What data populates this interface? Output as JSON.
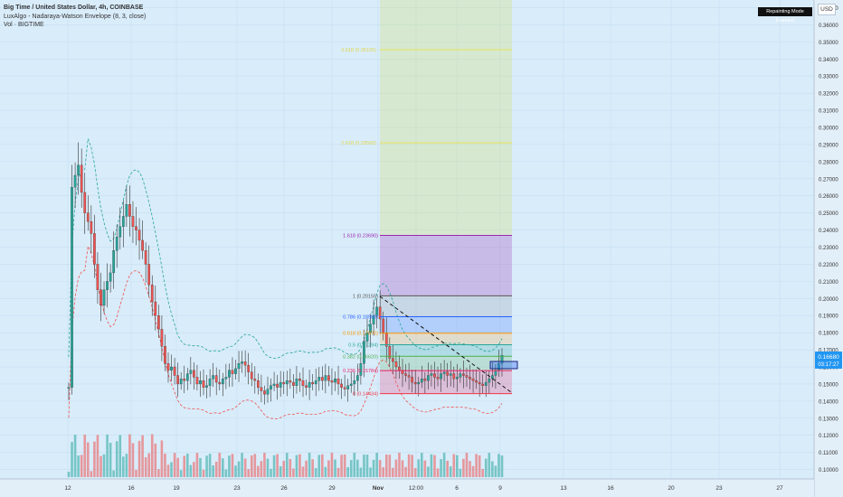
{
  "chart_data": {
    "type": "candlestick",
    "title": "Big Time / United States Dollar, 4h, COINBASE",
    "indicators": [
      "LuxAlgo - Nadaraya-Watson Envelope (8, 3, close)",
      "Vol · BIGTIME"
    ],
    "currency": "USD",
    "banner": "Repainting Mode Enabled",
    "price": "0.16680",
    "countdown": "03:17:27",
    "y_ticks": [
      "0.37000",
      "0.36000",
      "0.35000",
      "0.34000",
      "0.33000",
      "0.32000",
      "0.31000",
      "0.30000",
      "0.29000",
      "0.28000",
      "0.27000",
      "0.26000",
      "0.25000",
      "0.24000",
      "0.23000",
      "0.22000",
      "0.21000",
      "0.20000",
      "0.19000",
      "0.18000",
      "0.17000",
      "0.16000",
      "0.15000",
      "0.14000",
      "0.13000",
      "0.12000",
      "0.11000",
      "0.10000"
    ],
    "y_range": [
      0.0945,
      0.3745
    ],
    "x_ticks": [
      "12",
      "16",
      "19",
      "23",
      "26",
      "29",
      "Nov",
      "12:00",
      "6",
      "9",
      "13",
      "16",
      "20",
      "23",
      "27"
    ],
    "fib_levels": [
      {
        "label": "1.618 (0.23690)",
        "value": 0.2369,
        "color": "#9c27b0"
      },
      {
        "label": "1 (0.20155)",
        "value": 0.20155,
        "color": "#555555"
      },
      {
        "label": "0.786 (0.18930)",
        "value": 0.1893,
        "color": "#2962ff"
      },
      {
        "label": "0.618 (0.17970)",
        "value": 0.1797,
        "color": "#ff9800"
      },
      {
        "label": "0.5 (0.17294)",
        "value": 0.17294,
        "color": "#26a69a"
      },
      {
        "label": "0.382 (0.16620)",
        "value": 0.1662,
        "color": "#4caf50"
      },
      {
        "label": "0.236 (0.15784)",
        "value": 0.15784,
        "color": "#e91e63"
      },
      {
        "label": "0 (0.14434)",
        "value": 0.14434,
        "color": "#f23645"
      }
    ],
    "fib_upper_faint": [
      "3.618 (0.35155)",
      "2.618 (0.29500)"
    ],
    "series_close": [
      0.148,
      0.265,
      0.272,
      0.278,
      0.262,
      0.25,
      0.245,
      0.238,
      0.22,
      0.205,
      0.196,
      0.205,
      0.21,
      0.215,
      0.228,
      0.236,
      0.242,
      0.248,
      0.255,
      0.248,
      0.242,
      0.24,
      0.234,
      0.228,
      0.22,
      0.208,
      0.198,
      0.19,
      0.182,
      0.172,
      0.162,
      0.158,
      0.16,
      0.155,
      0.15,
      0.153,
      0.152,
      0.156,
      0.158,
      0.154,
      0.15,
      0.152,
      0.148,
      0.149,
      0.153,
      0.155,
      0.151,
      0.15,
      0.153,
      0.154,
      0.158,
      0.156,
      0.159,
      0.162,
      0.163,
      0.161,
      0.157,
      0.153,
      0.152,
      0.148,
      0.146,
      0.144,
      0.147,
      0.149,
      0.15,
      0.148,
      0.151,
      0.15,
      0.152,
      0.151,
      0.149,
      0.153,
      0.152,
      0.149,
      0.148,
      0.151,
      0.15,
      0.152,
      0.154,
      0.152,
      0.155,
      0.152,
      0.151,
      0.153,
      0.15,
      0.148,
      0.147,
      0.149,
      0.15,
      0.152,
      0.155,
      0.162,
      0.175,
      0.18,
      0.185,
      0.19,
      0.195,
      0.188,
      0.18,
      0.172,
      0.165,
      0.163,
      0.16,
      0.158,
      0.156,
      0.155,
      0.154,
      0.151,
      0.15,
      0.151,
      0.153,
      0.152,
      0.155,
      0.156,
      0.154,
      0.153,
      0.156,
      0.157,
      0.155,
      0.156,
      0.153,
      0.154,
      0.156,
      0.155,
      0.154,
      0.153,
      0.152,
      0.151,
      0.15,
      0.149,
      0.151,
      0.153,
      0.155,
      0.158,
      0.162,
      0.1668
    ]
  }
}
